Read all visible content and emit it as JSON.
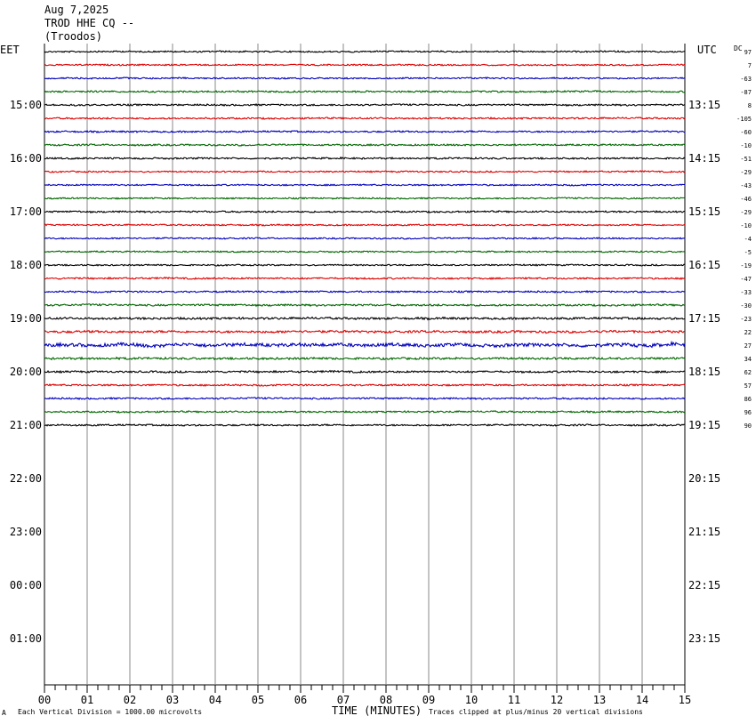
{
  "header": {
    "date": "Aug 7,2025",
    "station": "TROD HHE CQ --",
    "location": "(Troodos)"
  },
  "footer": {
    "scale_note": "Each Vertical Division = 1000.00 microvolts",
    "xlabel": "TIME (MINUTES)",
    "clip_note": "Traces clipped at plus/minus 20 vertical divisions",
    "corner_mark": "A"
  },
  "colors": {
    "cycle": [
      "#000000",
      "#dd0000",
      "#0000bb",
      "#006600"
    ],
    "grid": "#888888"
  },
  "chart_data": {
    "type": "line",
    "subtype": "helicorder",
    "x_ticks": [
      "00",
      "01",
      "02",
      "03",
      "04",
      "05",
      "06",
      "07",
      "08",
      "09",
      "10",
      "11",
      "12",
      "13",
      "14",
      "15"
    ],
    "xlim": [
      0,
      15
    ],
    "left_axis_label": "EET",
    "right_axis_label": "UTC",
    "dc_label": "DC",
    "left_hour_labels": [
      "15:00",
      "16:00",
      "17:00",
      "18:00",
      "19:00",
      "20:00",
      "21:00",
      "22:00",
      "23:00",
      "00:00",
      "01:00"
    ],
    "right_hour_labels": [
      "13:15",
      "14:15",
      "15:15",
      "16:15",
      "17:15",
      "18:15",
      "19:15",
      "20:15",
      "21:15",
      "22:15",
      "23:15"
    ],
    "rows_per_hour": 4,
    "total_rows": 48,
    "first_labeled_row": 4,
    "traces": [
      {
        "dc": "97",
        "activity": 0.7
      },
      {
        "dc": "7",
        "activity": 0.7
      },
      {
        "dc": "-63",
        "activity": 0.7
      },
      {
        "dc": "-87",
        "activity": 0.8
      },
      {
        "dc": "8",
        "activity": 0.8
      },
      {
        "dc": "-105",
        "activity": 0.8
      },
      {
        "dc": "-60",
        "activity": 0.8
      },
      {
        "dc": "-10",
        "activity": 0.8
      },
      {
        "dc": "-51",
        "activity": 0.8
      },
      {
        "dc": "-29",
        "activity": 0.7
      },
      {
        "dc": "-43",
        "activity": 0.7
      },
      {
        "dc": "-46",
        "activity": 0.7
      },
      {
        "dc": "-29",
        "activity": 0.8
      },
      {
        "dc": "-10",
        "activity": 0.7
      },
      {
        "dc": "-4",
        "activity": 0.7
      },
      {
        "dc": "-5",
        "activity": 0.7
      },
      {
        "dc": "-19",
        "activity": 0.7
      },
      {
        "dc": "-47",
        "activity": 0.8
      },
      {
        "dc": "-33",
        "activity": 0.8
      },
      {
        "dc": "-30",
        "activity": 0.9
      },
      {
        "dc": "-23",
        "activity": 1.0
      },
      {
        "dc": "22",
        "activity": 1.1
      },
      {
        "dc": "27",
        "activity": 1.6
      },
      {
        "dc": "34",
        "activity": 1.0
      },
      {
        "dc": "62",
        "activity": 0.9
      },
      {
        "dc": "57",
        "activity": 0.8
      },
      {
        "dc": "86",
        "activity": 0.8
      },
      {
        "dc": "96",
        "activity": 0.8
      },
      {
        "dc": "90",
        "activity": 0.8
      }
    ]
  }
}
